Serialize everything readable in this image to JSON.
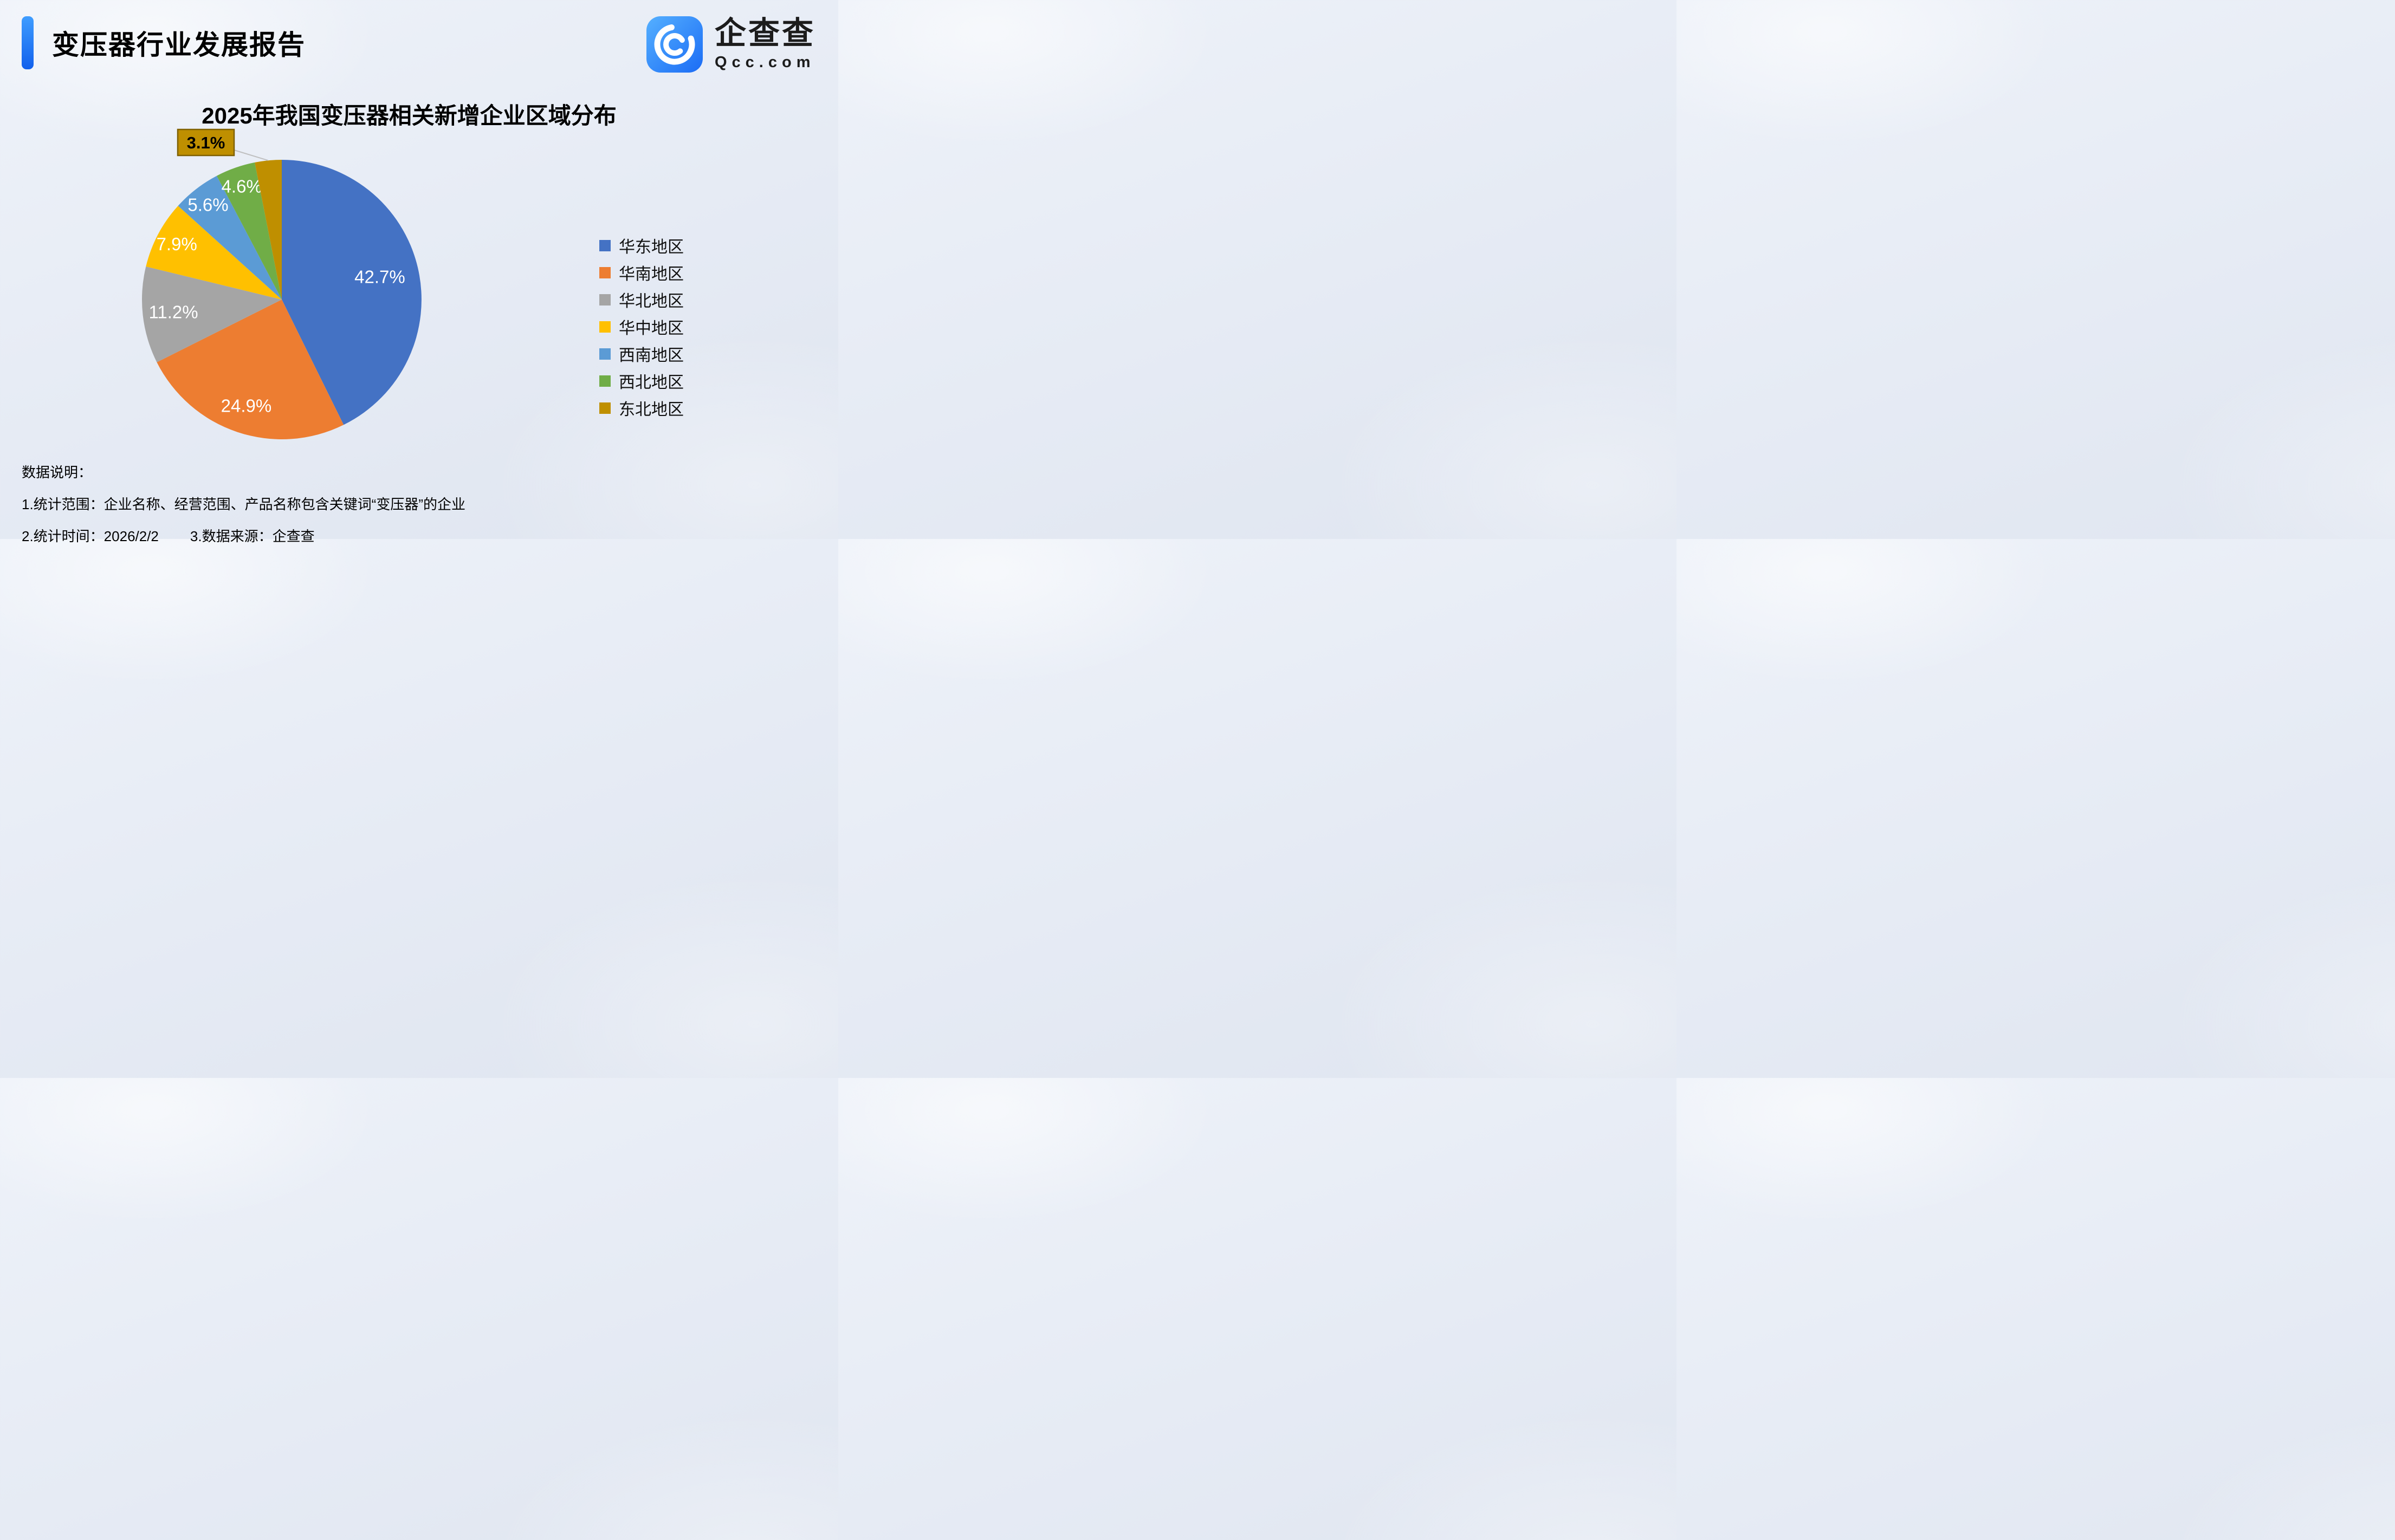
{
  "page": {
    "title": "变压器行业发展报告"
  },
  "logo": {
    "name": "企查查",
    "domain": "Qcc.com"
  },
  "chart_data": {
    "type": "pie",
    "title": "2025年我国变压器相关新增企业区域分布",
    "categories": [
      "华东地区",
      "华南地区",
      "华北地区",
      "华中地区",
      "西南地区",
      "西北地区",
      "东北地区"
    ],
    "values": [
      42.7,
      24.9,
      11.2,
      7.9,
      5.6,
      4.6,
      3.1
    ],
    "unit": "%",
    "colors": [
      "#4472C4",
      "#ED7D31",
      "#A5A5A5",
      "#FFC000",
      "#5B9BD5",
      "#70AD47",
      "#BF8F00"
    ],
    "legend_position": "right",
    "start_angle_deg": 0,
    "direction": "clockwise",
    "callout_index": 6,
    "callout_border_color": "#7F6000",
    "leader_line_color": "#BFBFBF"
  },
  "notes": {
    "heading": "数据说明：",
    "line1": "1.统计范围：企业名称、经营范围、产品名称包含关键词“变压器”的企业",
    "line2a": "2.统计时间：2026/2/2",
    "line2b": "3.数据来源：企查查"
  }
}
